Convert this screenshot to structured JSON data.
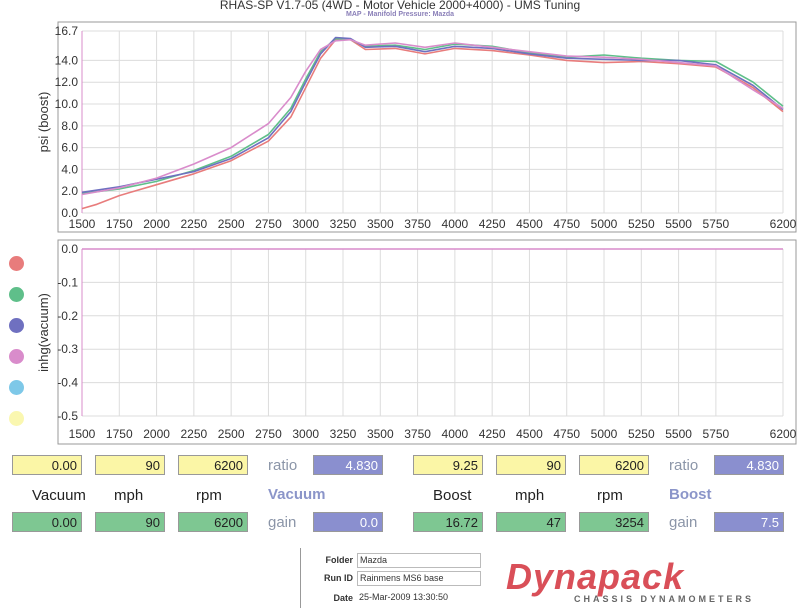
{
  "header": {
    "title": "RHAS-SP V1.7-05    (4WD - Motor Vehicle 2000+4000) - UMS Tuning",
    "subtitle": "MAP - Manifold Pressure: Mazda"
  },
  "colors": {
    "red": "#e87c7c",
    "green": "#5fbf8a",
    "blue": "#6f70c0",
    "pink": "#d98ccb",
    "cyan": "#7ec8e8",
    "yellow": "#faf7b0"
  },
  "legend_dots": [
    "red",
    "green",
    "blue",
    "pink",
    "cyan",
    "yellow"
  ],
  "chart_data": [
    {
      "type": "line",
      "ylabel": "psi (boost)",
      "xlabel": "",
      "xlim": [
        1500,
        6200
      ],
      "ylim": [
        0,
        16.7
      ],
      "x_ticks": [
        "1500",
        "1750",
        "2000",
        "2250",
        "2500",
        "2750",
        "3000",
        "3250",
        "3500",
        "3750",
        "4000",
        "4250",
        "4500",
        "4750",
        "5000",
        "5250",
        "5500",
        "5750",
        "6200"
      ],
      "y_ticks": [
        "0.0",
        "2.0",
        "4.0",
        "6.0",
        "8.0",
        "10.0",
        "12.0",
        "14.0",
        "16.7"
      ],
      "series": [
        {
          "color": "red",
          "x": [
            1500,
            1600,
            1750,
            2000,
            2250,
            2500,
            2750,
            2900,
            3000,
            3100,
            3200,
            3300,
            3400,
            3600,
            3800,
            4000,
            4250,
            4500,
            4750,
            5000,
            5250,
            5500,
            5750,
            6000,
            6200
          ],
          "y": [
            0.4,
            0.8,
            1.6,
            2.6,
            3.6,
            4.8,
            6.6,
            8.8,
            11.5,
            14.2,
            15.9,
            15.9,
            15.0,
            15.1,
            14.6,
            15.1,
            14.9,
            14.5,
            14.0,
            13.8,
            13.9,
            13.7,
            13.4,
            11.5,
            9.3
          ]
        },
        {
          "color": "green",
          "x": [
            1500,
            1750,
            2000,
            2250,
            2500,
            2750,
            2900,
            3000,
            3100,
            3200,
            3300,
            3400,
            3600,
            3800,
            4000,
            4250,
            4500,
            4750,
            5000,
            5250,
            5500,
            5750,
            6000,
            6200
          ],
          "y": [
            1.8,
            2.2,
            2.9,
            3.9,
            5.2,
            7.2,
            9.6,
            12.3,
            14.8,
            16.0,
            15.9,
            15.3,
            15.4,
            15.0,
            15.5,
            15.3,
            14.7,
            14.3,
            14.5,
            14.2,
            14.0,
            13.9,
            12.0,
            9.8
          ]
        },
        {
          "color": "blue",
          "x": [
            1500,
            1750,
            2000,
            2250,
            2500,
            2750,
            2900,
            3000,
            3100,
            3200,
            3300,
            3400,
            3600,
            3800,
            4000,
            4250,
            4500,
            4750,
            5000,
            5250,
            5500,
            5750,
            6000,
            6200
          ],
          "y": [
            1.9,
            2.4,
            3.1,
            3.8,
            5.0,
            6.9,
            9.3,
            12.0,
            14.6,
            16.1,
            16.0,
            15.2,
            15.3,
            14.8,
            15.3,
            15.1,
            14.6,
            14.2,
            14.1,
            14.0,
            14.0,
            13.6,
            11.7,
            9.5
          ]
        },
        {
          "color": "pink",
          "x": [
            1500,
            1750,
            2000,
            2250,
            2500,
            2750,
            2900,
            3000,
            3100,
            3200,
            3300,
            3400,
            3600,
            3800,
            4000,
            4250,
            4500,
            4750,
            5000,
            5250,
            5500,
            5750,
            6000,
            6200
          ],
          "y": [
            1.7,
            2.3,
            3.2,
            4.5,
            6.0,
            8.2,
            10.6,
            13.0,
            15.0,
            15.8,
            15.9,
            15.4,
            15.6,
            15.2,
            15.6,
            15.2,
            14.8,
            14.4,
            14.3,
            14.1,
            13.8,
            13.5,
            11.3,
            9.6
          ]
        }
      ]
    },
    {
      "type": "line",
      "ylabel": "inhg(vacuum)",
      "xlabel": "",
      "xlim": [
        1500,
        6200
      ],
      "ylim": [
        -0.5,
        0.0
      ],
      "x_ticks": [
        "1500",
        "1750",
        "2000",
        "2250",
        "2500",
        "2750",
        "3000",
        "3250",
        "3500",
        "3750",
        "4000",
        "4250",
        "4500",
        "4750",
        "5000",
        "5250",
        "5500",
        "5750",
        "6200"
      ],
      "y_ticks": [
        "0.0",
        "-0.1",
        "-0.2",
        "-0.3",
        "-0.4",
        "-0.5"
      ],
      "series": [
        {
          "color": "pink",
          "x": [
            1500,
            6200
          ],
          "y": [
            0.0,
            0.0
          ]
        }
      ]
    }
  ],
  "readouts": {
    "vacuum": {
      "title": "Vacuum",
      "row1": {
        "value": "0.00",
        "mph": "90",
        "rpm": "6200",
        "ratio_label": "ratio",
        "ratio": "4.830"
      },
      "labels": {
        "value": "Vacuum",
        "mph": "mph",
        "rpm": "rpm"
      },
      "row2": {
        "value": "0.00",
        "mph": "90",
        "rpm": "6200",
        "gain_label": "gain",
        "gain": "0.0"
      }
    },
    "boost": {
      "title": "Boost",
      "row1": {
        "value": "9.25",
        "mph": "90",
        "rpm": "6200",
        "ratio_label": "ratio",
        "ratio": "4.830"
      },
      "labels": {
        "value": "Boost",
        "mph": "mph",
        "rpm": "rpm"
      },
      "row2": {
        "value": "16.72",
        "mph": "47",
        "rpm": "3254",
        "gain_label": "gain",
        "gain": "7.5"
      }
    }
  },
  "footer": {
    "folder_label": "Folder",
    "folder": "Mazda",
    "runid_label": "Run ID",
    "runid": "Rainmens MS6 base",
    "date_label": "Date",
    "date": "25-Mar-2009  13:30:50",
    "logo": "Dynapack",
    "logo_sub": "CHASSIS DYNAMOMETERS"
  }
}
